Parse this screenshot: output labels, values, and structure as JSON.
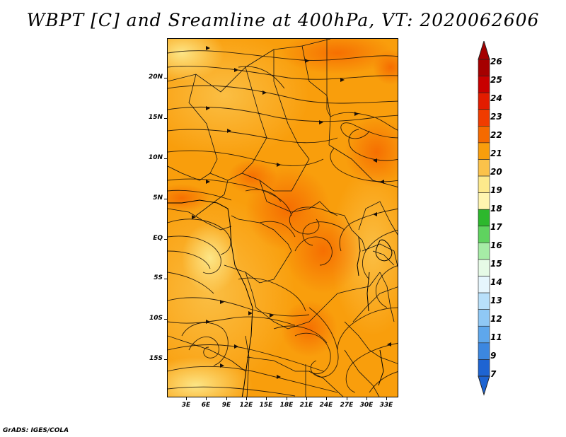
{
  "title": "WBPT [C] and Sreamline at 400hPa, VT: 2020062606",
  "credit": "GrADS: IGES/COLA",
  "map": {
    "lat_labels": [
      {
        "label": "20N",
        "lat": 20
      },
      {
        "label": "15N",
        "lat": 15
      },
      {
        "label": "10N",
        "lat": 10
      },
      {
        "label": "5N",
        "lat": 5
      },
      {
        "label": "EQ",
        "lat": 0
      },
      {
        "label": "5S",
        "lat": -5
      },
      {
        "label": "10S",
        "lat": -10
      },
      {
        "label": "15S",
        "lat": -15
      }
    ],
    "lon_labels": [
      {
        "label": "3E",
        "lon": 3
      },
      {
        "label": "6E",
        "lon": 6
      },
      {
        "label": "9E",
        "lon": 9
      },
      {
        "label": "12E",
        "lon": 12
      },
      {
        "label": "15E",
        "lon": 15
      },
      {
        "label": "18E",
        "lon": 18
      },
      {
        "label": "21E",
        "lon": 21
      },
      {
        "label": "24E",
        "lon": 24
      },
      {
        "label": "27E",
        "lon": 27
      },
      {
        "label": "30E",
        "lon": 30
      },
      {
        "label": "33E",
        "lon": 33
      }
    ],
    "lat_range": [
      -20,
      24.7
    ],
    "lon_range": [
      0.3,
      35
    ],
    "field": "WBPT",
    "field_units": "C",
    "level": "400hPa"
  },
  "legend": {
    "labels": [
      "26",
      "25",
      "24",
      "23",
      "22",
      "21",
      "20",
      "19",
      "18",
      "17",
      "16",
      "15",
      "14",
      "13",
      "12",
      "11",
      "9",
      "7"
    ],
    "colors": [
      "#a50000",
      "#c80000",
      "#e21c00",
      "#f03c00",
      "#f56a00",
      "#f99e0c",
      "#fbc24a",
      "#fde98c",
      "#fff5b0",
      "#2db82d",
      "#5fd35f",
      "#a6eca6",
      "#e6fae6",
      "#e6f6fd",
      "#b8e0fa",
      "#8fc8f5",
      "#5ea7ec",
      "#3c87e0",
      "#1e64d2"
    ]
  }
}
